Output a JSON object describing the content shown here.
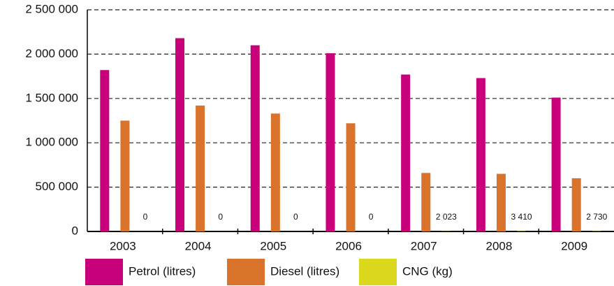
{
  "chart_data": {
    "type": "bar",
    "categories": [
      "2003",
      "2004",
      "2005",
      "2006",
      "2007",
      "2008",
      "2009"
    ],
    "series": [
      {
        "name": "Petrol (litres)",
        "color": "#c8007a",
        "values": [
          1820000,
          2180000,
          2100000,
          2010000,
          1770000,
          1730000,
          1510000
        ]
      },
      {
        "name": "Diesel (litres)",
        "color": "#d9722a",
        "values": [
          1250000,
          1420000,
          1330000,
          1220000,
          660000,
          650000,
          600000
        ]
      },
      {
        "name": "CNG (kg)",
        "color": "#dcd81e",
        "values": [
          0,
          0,
          0,
          0,
          2023,
          3410,
          2730
        ],
        "value_labels": [
          "0",
          "0",
          "0",
          "0",
          "2 023",
          "3 410",
          "2 730"
        ]
      }
    ],
    "ylim": [
      0,
      2500000
    ],
    "yticks": [
      0,
      {
        "value": 500000,
        "label": "500 000"
      },
      {
        "value": 1000000,
        "label": "1 000 000"
      },
      {
        "value": 1500000,
        "label": "1 500 000"
      },
      {
        "value": 2000000,
        "label": "2 000 000"
      },
      {
        "value": 2500000,
        "label": "2 500 000"
      }
    ],
    "grid": true,
    "legend": "bottom"
  }
}
